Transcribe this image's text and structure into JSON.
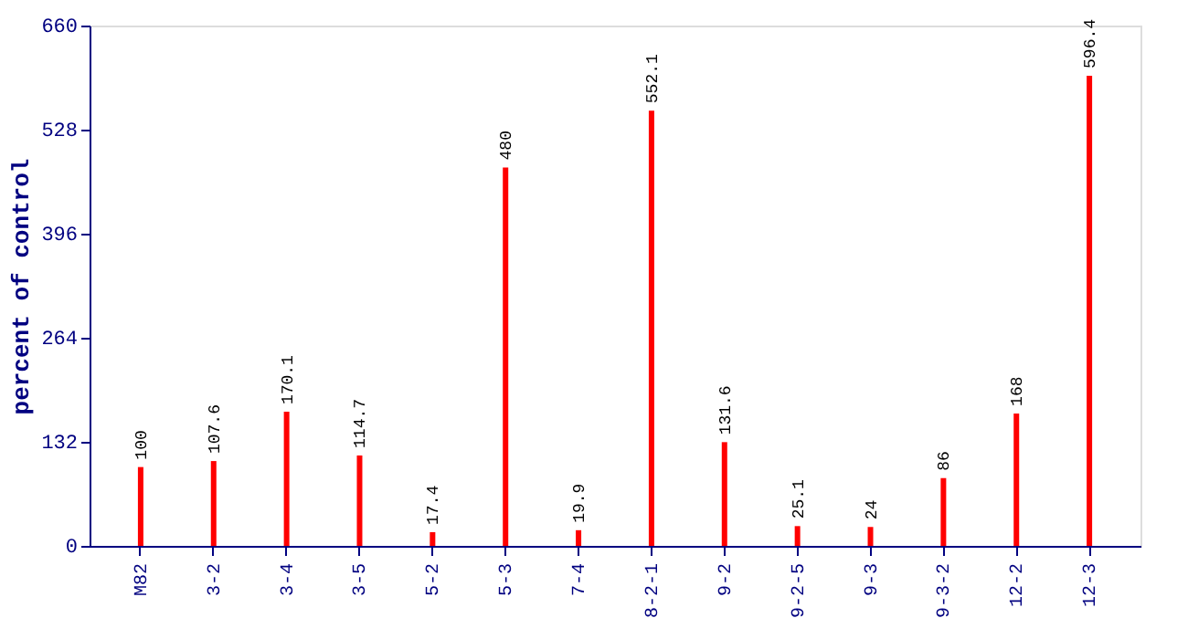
{
  "chart_data": {
    "type": "bar",
    "ylabel": "percent of control",
    "categories": [
      "M82",
      "3-2",
      "3-4",
      "3-5",
      "5-2",
      "5-3",
      "7-4",
      "8-2-1",
      "9-2",
      "9-2-5",
      "9-3",
      "9-3-2",
      "12-2",
      "12-3"
    ],
    "values": [
      100,
      107.6,
      170.1,
      114.7,
      17.4,
      480,
      19.9,
      552.1,
      131.6,
      25.1,
      24,
      86,
      168,
      596.4
    ],
    "color": "#ff0000",
    "ylim": [
      0,
      660
    ],
    "yticks": [
      0,
      132,
      264,
      396,
      528,
      660
    ],
    "grid": false,
    "data_labels": true
  }
}
